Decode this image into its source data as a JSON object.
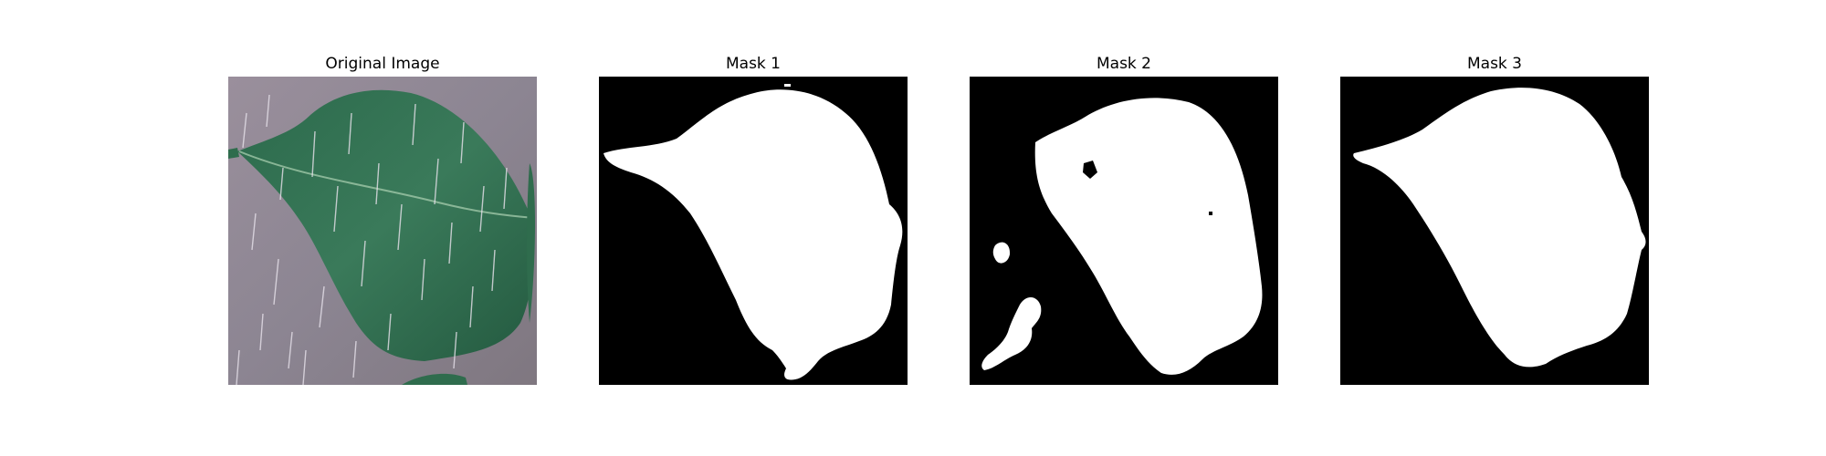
{
  "figure": {
    "panels": [
      {
        "title": "Original Image"
      },
      {
        "title": "Mask 1"
      },
      {
        "title": "Mask 2"
      },
      {
        "title": "Mask 3"
      }
    ]
  },
  "colors": {
    "background": "#ffffff",
    "mask_background": "#000000",
    "mask_foreground": "#ffffff",
    "leaf": "#2e6b4e",
    "photo_background": "#8f8794"
  }
}
